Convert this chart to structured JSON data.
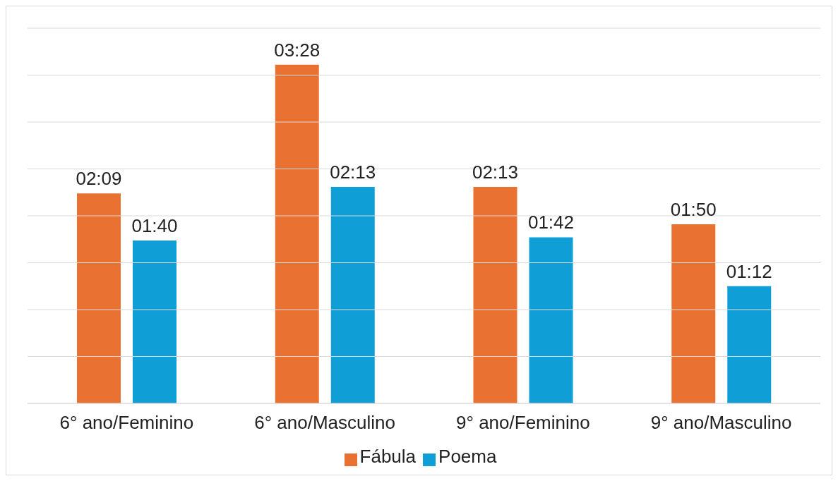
{
  "chart_data": {
    "type": "bar",
    "categories": [
      "6° ano/Feminino",
      "6° ano/Masculino",
      "9° ano/Feminino",
      "9° ano/Masculino"
    ],
    "series": [
      {
        "name": "Fábula",
        "color": "#e97132",
        "values": [
          129,
          208,
          133,
          110
        ],
        "value_labels": [
          "02:09",
          "03:28",
          "02:13",
          "01:50"
        ]
      },
      {
        "name": "Poema",
        "color": "#0f9ed5",
        "values": [
          100,
          133,
          102,
          72
        ],
        "value_labels": [
          "01:40",
          "02:13",
          "01:42",
          "01:12"
        ]
      }
    ],
    "ylim": [
      0,
      230.4
    ],
    "tick_labels": "x",
    "grid": "y",
    "legend": "bottom"
  }
}
